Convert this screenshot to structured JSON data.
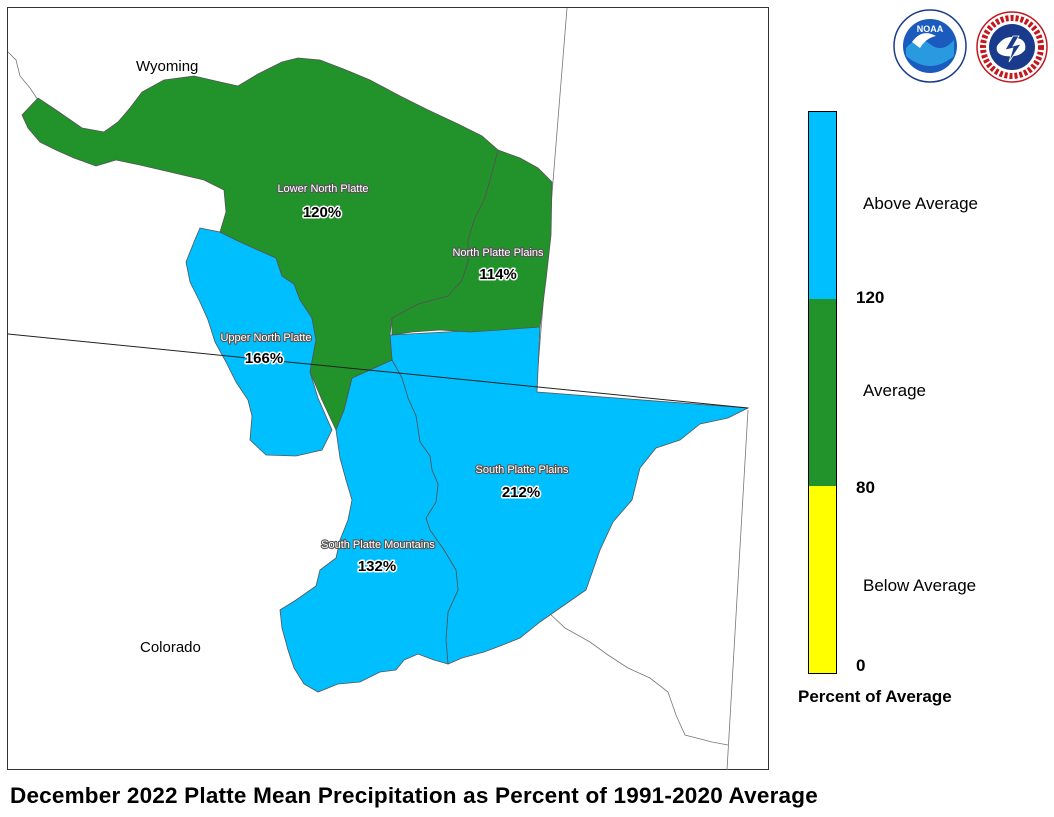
{
  "title": "December 2022 Platte Mean Precipitation as Percent of 1991-2020 Average",
  "map": {
    "state_labels": [
      "Wyoming",
      "Colorado"
    ],
    "basins": [
      {
        "name": "Lower North Platte",
        "percent": "120%",
        "category": "Average"
      },
      {
        "name": "North Platte Plains",
        "percent": "114%",
        "category": "Average"
      },
      {
        "name": "Upper North Platte",
        "percent": "166%",
        "category": "Above Average"
      },
      {
        "name": "South Platte Plains",
        "percent": "212%",
        "category": "Above Average"
      },
      {
        "name": "South Platte Mountains",
        "percent": "132%",
        "category": "Above Average"
      }
    ]
  },
  "legend": {
    "title": "Percent of Average",
    "categories": [
      {
        "label": "Above Average",
        "color": "#00bfff"
      },
      {
        "label": "Average",
        "color": "#22922a"
      },
      {
        "label": "Below Average",
        "color": "#ffff00"
      }
    ],
    "ticks": [
      "120",
      "80",
      "0"
    ]
  },
  "logos": {
    "noaa": {
      "text": "NOAA",
      "icon": "noaa-logo"
    },
    "nws": {
      "text": "NATIONAL WEATHER SERVICE",
      "icon": "nws-logo"
    }
  },
  "colors": {
    "above": "#00bfff",
    "average": "#22922a",
    "below": "#ffff00"
  }
}
